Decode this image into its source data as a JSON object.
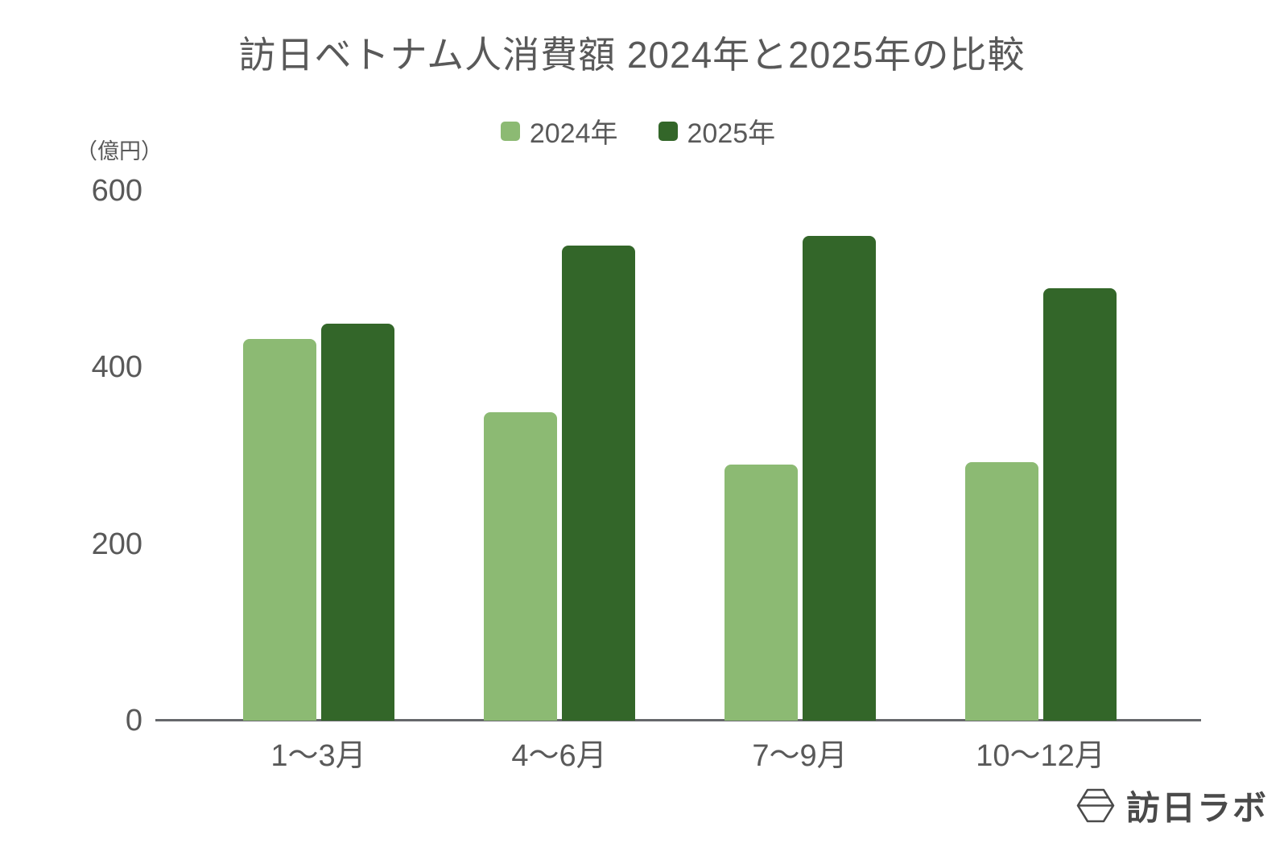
{
  "chart_data": {
    "type": "bar",
    "title": "訪日ベトナム人消費額 2024年と2025年の比較",
    "unit_label": "（億円）",
    "categories": [
      "1〜3月",
      "4〜6月",
      "7〜9月",
      "10〜12月"
    ],
    "series": [
      {
        "name": "2024年",
        "color": "#8cba73",
        "values": [
          432,
          349,
          290,
          293
        ]
      },
      {
        "name": "2025年",
        "color": "#336629",
        "values": [
          450,
          538,
          549,
          490
        ]
      }
    ],
    "ylim": [
      0,
      600
    ],
    "yticks": [
      0,
      200,
      400,
      600
    ],
    "grid": false,
    "legend_position": "top-center",
    "axis_color": "#66686b",
    "text_color": "#595959"
  },
  "brand": {
    "name": "訪日ラボ",
    "color": "#4a4a4a",
    "icon": "hexagon-lantern-icon"
  }
}
